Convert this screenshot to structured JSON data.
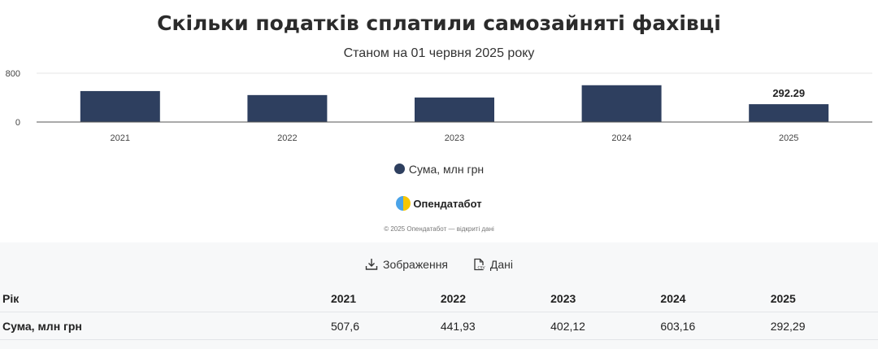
{
  "chart_data": {
    "type": "bar",
    "title": "Скільки податків сплатили самозайняті фахівці",
    "subtitle": "Станом на 01 червня 2025 року",
    "categories": [
      "2021",
      "2022",
      "2023",
      "2024",
      "2025"
    ],
    "series": [
      {
        "name": "Сума, млн грн",
        "values": [
          507.6,
          441.93,
          402.12,
          603.16,
          292.29
        ]
      }
    ],
    "data_labels": [
      null,
      null,
      null,
      null,
      "292.29"
    ],
    "y_ticks": [
      "0",
      "800"
    ],
    "ylim": [
      0,
      800
    ],
    "grid": true,
    "legend_position": "bottom",
    "bar_color": "#2e3f5f"
  },
  "branding": {
    "logo_text": "Опендатабот",
    "copyright": "© 2025 Опендатабот — відкриті дані"
  },
  "actions": {
    "image_label": "Зображення",
    "data_label": "Дані"
  },
  "table": {
    "header_label": "Рік",
    "row_label": "Сума, млн грн",
    "years": [
      "2021",
      "2022",
      "2023",
      "2024",
      "2025"
    ],
    "values": [
      "507,6",
      "441,93",
      "402,12",
      "603,16",
      "292,29"
    ]
  }
}
